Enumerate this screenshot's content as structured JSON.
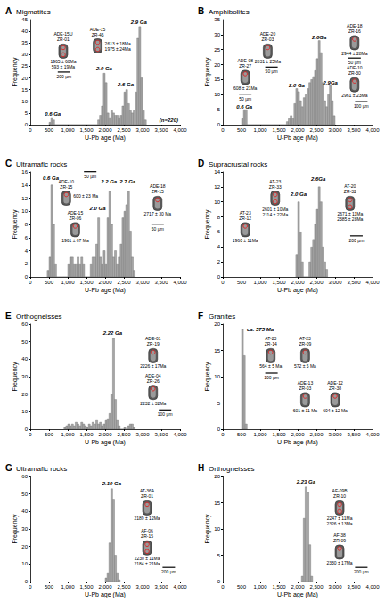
{
  "chart_data": [
    {
      "type": "histogram",
      "panel": "A",
      "title": "Migmatites",
      "xlabel": "U-Pb age (Ma)",
      "ylabel": "Frequency",
      "color": "#a6a6a6",
      "grid": false,
      "xlim": [
        0,
        4000
      ],
      "xticks": [
        0,
        500,
        1000,
        1500,
        2000,
        2500,
        3000,
        3500,
        4000
      ],
      "ylim": [
        0,
        45
      ],
      "yticks": [
        0,
        5,
        10,
        15,
        20,
        25,
        30,
        35,
        40,
        45
      ],
      "bins": [
        500,
        550,
        600,
        650,
        700,
        750,
        800,
        850,
        900,
        950,
        1000,
        1050,
        1100,
        1150,
        1200,
        1250,
        1300,
        1350,
        1400,
        1450,
        1500,
        1550,
        1600,
        1650,
        1700,
        1750,
        1800,
        1850,
        1900,
        1950,
        2000,
        2050,
        2100,
        2150,
        2200,
        2250,
        2300,
        2350,
        2400,
        2450,
        2500,
        2550,
        2600,
        2650,
        2700,
        2750,
        2800,
        2850,
        2900,
        2950,
        3000,
        3050,
        3100
      ],
      "counts": [
        1,
        3,
        2,
        0,
        0,
        0,
        0,
        0,
        0,
        0,
        0,
        0,
        0,
        0,
        0,
        0,
        0,
        0,
        0,
        0,
        0,
        0,
        0,
        0,
        0,
        0,
        2,
        4,
        8,
        22,
        18,
        5,
        3,
        6,
        5,
        4,
        4,
        3,
        4,
        8,
        14,
        15,
        9,
        6,
        5,
        6,
        14,
        37,
        42,
        20,
        6,
        2
      ],
      "annotations": [
        {
          "text": "0.6 Ga",
          "x": 600,
          "y": 4.5
        },
        {
          "text": "2.0 Ga",
          "x": 1975,
          "y": 24
        },
        {
          "text": "2.6 Ga",
          "x": 2550,
          "y": 17
        },
        {
          "text": "2.9 Ga",
          "x": 2900,
          "y": 44
        },
        {
          "text": "(n=220)",
          "x": 3700,
          "y": 2
        }
      ],
      "scale_bars": [
        {
          "text": "200 µm",
          "x": 900,
          "y": 21
        }
      ],
      "zircons": [
        {
          "sample": "ADE-15U",
          "grain": "ZR-01",
          "ages": [
            "1965 ± 60Ma",
            "593 ± 19Ma"
          ]
        },
        {
          "sample": "ADE-15",
          "grain": "ZR-46",
          "ages": [
            "2613 ± 18Ma",
            "1975 ± 24Ma"
          ]
        }
      ]
    },
    {
      "type": "histogram",
      "panel": "B",
      "title": "Amphibolites",
      "xlabel": "U-Pb age (Ma)",
      "ylabel": "Frequency",
      "color": "#a6a6a6",
      "grid": false,
      "xlim": [
        0,
        4000
      ],
      "xticks": [
        0,
        500,
        1000,
        1500,
        2000,
        2500,
        3000,
        3500,
        4000
      ],
      "ylim": [
        0,
        35
      ],
      "yticks": [
        0,
        5,
        10,
        15,
        20,
        25,
        30,
        35
      ],
      "bins": [
        500,
        550,
        600,
        650,
        700,
        750,
        800,
        850,
        900,
        950,
        1000,
        1050,
        1100,
        1150,
        1200,
        1250,
        1300,
        1350,
        1400,
        1450,
        1500,
        1550,
        1600,
        1650,
        1700,
        1750,
        1800,
        1850,
        1900,
        1950,
        2000,
        2050,
        2100,
        2150,
        2200,
        2250,
        2300,
        2350,
        2400,
        2450,
        2500,
        2550,
        2600,
        2650,
        2700,
        2750,
        2800,
        2850,
        2900,
        2950,
        3000
      ],
      "counts": [
        2,
        5,
        5,
        0,
        0,
        0,
        0,
        0,
        0,
        0,
        0,
        0,
        0,
        0,
        0,
        0,
        0,
        0,
        0,
        0,
        0,
        0,
        0,
        0,
        1,
        2,
        3,
        2,
        7,
        12,
        11,
        8,
        6,
        9,
        10,
        12,
        14,
        15,
        16,
        18,
        22,
        28,
        24,
        14,
        8,
        6,
        10,
        13,
        8,
        3
      ],
      "annotations": [
        {
          "text": "0.6 Ga",
          "x": 575,
          "y": 6
        },
        {
          "text": "2.0 Ga",
          "x": 1975,
          "y": 13
        },
        {
          "text": "2.6Ga",
          "x": 2575,
          "y": 29
        },
        {
          "text": "2.9Ga",
          "x": 2875,
          "y": 14
        }
      ],
      "scale_bars": [
        {
          "text": "50 µm",
          "x": 1300,
          "y": 18
        },
        {
          "text": "50 µm",
          "x": 600,
          "y": 9
        },
        {
          "text": "50 µm",
          "x": 3520,
          "y": 21
        },
        {
          "text": "100 µm",
          "x": 3700,
          "y": 6.5
        }
      ],
      "zircons": [
        {
          "sample": "ADE-20",
          "grain": "ZR-03",
          "ages": [
            "2031 ± 25Ma"
          ]
        },
        {
          "sample": "ADE-08",
          "grain": "ZR-27",
          "ages": [
            "608 ± 21Ma"
          ]
        },
        {
          "sample": "ADE-18",
          "grain": "ZR-16",
          "ages": [
            "2944 ± 28Ma"
          ]
        },
        {
          "sample": "ADE-10",
          "grain": "ZR-30",
          "ages": [
            "2961 ± 23Ma"
          ]
        }
      ]
    },
    {
      "type": "histogram",
      "panel": "C",
      "title": "Ultramafic rocks",
      "xlabel": "U-Pb age (Ma)",
      "ylabel": "Frequency",
      "color": "#a6a6a6",
      "grid": false,
      "xlim": [
        0,
        4000
      ],
      "xticks": [
        0,
        500,
        1000,
        1500,
        2000,
        2500,
        3000,
        3500,
        4000
      ],
      "ylim": [
        0,
        16
      ],
      "yticks": [
        0,
        2,
        4,
        6,
        8,
        10,
        12,
        14,
        16
      ],
      "bins": [
        450,
        500,
        550,
        600,
        650,
        700,
        750,
        800,
        850,
        900,
        950,
        1000,
        1050,
        1100,
        1150,
        1200,
        1250,
        1300,
        1350,
        1400,
        1450,
        1500,
        1550,
        1600,
        1650,
        1700,
        1750,
        1800,
        1850,
        1900,
        1950,
        2000,
        2050,
        2100,
        2150,
        2200,
        2250,
        2300,
        2350,
        2400,
        2450,
        2500,
        2550,
        2600,
        2650,
        2700,
        2750,
        2800
      ],
      "counts": [
        1,
        3,
        14,
        8,
        2,
        0,
        0,
        0,
        0,
        0,
        0,
        2,
        3,
        3,
        2,
        2,
        3,
        2,
        3,
        2,
        0,
        0,
        0,
        2,
        3,
        3,
        5,
        9,
        3,
        2,
        4,
        2,
        9,
        13,
        8,
        3,
        4,
        2,
        3,
        5,
        9,
        10,
        11,
        13,
        7,
        3,
        1
      ],
      "annotations": [
        {
          "text": "0.6 Ga",
          "x": 550,
          "y": 15
        },
        {
          "text": "2.0 Ga",
          "x": 1800,
          "y": 10.5
        },
        {
          "text": "2.2 Ga",
          "x": 2100,
          "y": 14.5
        },
        {
          "text": "2.7 Ga",
          "x": 2600,
          "y": 14.5
        }
      ],
      "scale_bars": [
        {
          "text": "50 µm",
          "x": 1600,
          "y": 15.5
        },
        {
          "text": "50 µm",
          "x": 3400,
          "y": 7.5
        }
      ],
      "zircons": [
        {
          "sample": "ADE-15",
          "grain": "ZR-06",
          "ages": [
            "1961 ± 67 Ma"
          ]
        },
        {
          "sample": "ADE-18",
          "grain": "ZR-15",
          "ages": [
            "2717 ± 30 Ma"
          ]
        },
        {
          "sample": "ADE-10",
          "grain": "ZR-15",
          "ages": [
            "600 ± 23 Ma"
          ]
        }
      ]
    },
    {
      "type": "histogram",
      "panel": "D",
      "title": "Supracrustal rocks",
      "xlabel": "U-Pb age (Ma)",
      "ylabel": "Frequency",
      "color": "#a6a6a6",
      "grid": false,
      "xlim": [
        0,
        4000
      ],
      "xticks": [
        0,
        500,
        1000,
        1500,
        2000,
        2500,
        3000,
        3500,
        4000
      ],
      "ylim": [
        0,
        14
      ],
      "yticks": [
        0,
        2,
        4,
        6,
        8,
        10,
        12,
        14
      ],
      "bins": [
        1950,
        2000,
        2050,
        2100,
        2150,
        2200,
        2250,
        2300,
        2350,
        2400,
        2450,
        2500,
        2550,
        2600,
        2650,
        2700,
        2750,
        2800
      ],
      "counts": [
        3,
        10,
        6,
        2,
        0,
        0,
        0,
        2,
        4,
        5,
        7,
        9,
        12,
        10,
        4,
        2,
        1
      ],
      "annotations": [
        {
          "text": "2.0 Ga",
          "x": 2025,
          "y": 11
        },
        {
          "text": "2.6Ga",
          "x": 2550,
          "y": 13
        }
      ],
      "scale_bars": [
        {
          "text": "200 µm",
          "x": 3570,
          "y": 5
        }
      ],
      "zircons": [
        {
          "sample": "AT-23",
          "grain": "ZR-33",
          "ages": [
            "2601 ± 10Ma",
            "2114 ± 22Ma"
          ]
        },
        {
          "sample": "AT-23",
          "grain": "ZR-12",
          "ages": [
            "1960 ± 11Ma"
          ]
        },
        {
          "sample": "AT-20",
          "grain": "ZR-32",
          "ages": [
            "2671 ± 11Ma",
            "2385 ± 28Ma"
          ]
        }
      ]
    },
    {
      "type": "histogram",
      "panel": "E",
      "title": "Orthogneisses",
      "xlabel": "U-Pb age (Ma)",
      "ylabel": "Frequency",
      "color": "#a6a6a6",
      "grid": false,
      "xlim": [
        0,
        4000
      ],
      "xticks": [
        0,
        500,
        1000,
        1500,
        2000,
        2500,
        3000,
        3500,
        4000
      ],
      "ylim": [
        0,
        60
      ],
      "yticks": [
        0,
        10,
        20,
        30,
        40,
        50,
        60
      ],
      "bins": [
        900,
        950,
        1000,
        1050,
        1100,
        1150,
        1200,
        1250,
        1300,
        1350,
        1400,
        1450,
        1500,
        1550,
        1600,
        1650,
        1700,
        1750,
        1800,
        1850,
        1900,
        1950,
        2000,
        2050,
        2100,
        2150,
        2200,
        2250,
        2300,
        2350,
        2400,
        2450,
        2500,
        2550,
        2600,
        2650,
        2700,
        2750,
        2800
      ],
      "counts": [
        1,
        2,
        3,
        2,
        3,
        2,
        4,
        3,
        2,
        4,
        3,
        2,
        1,
        3,
        2,
        4,
        3,
        5,
        3,
        4,
        2,
        3,
        5,
        6,
        9,
        20,
        52,
        17,
        5,
        2,
        0,
        0,
        1,
        0,
        2,
        3,
        3,
        1
      ],
      "annotations": [
        {
          "text": "2.22 Ga",
          "x": 2200,
          "y": 55
        }
      ],
      "scale_bars": [
        {
          "text": "100 µm",
          "x": 3600,
          "y": 9
        }
      ],
      "zircons": [
        {
          "sample": "ADE-01",
          "grain": "ZR-19",
          "ages": [
            "2226 ± 17Ma"
          ]
        },
        {
          "sample": "ADE-04",
          "grain": "ZR-26",
          "ages": [
            "2232 ± 32Ma"
          ]
        }
      ]
    },
    {
      "type": "histogram",
      "panel": "F",
      "title": "Granites",
      "xlabel": "U-Pb age (Ma)",
      "ylabel": "Frequency",
      "color": "#a6a6a6",
      "grid": false,
      "xlim": [
        0,
        4000
      ],
      "xticks": [
        0,
        500,
        1000,
        1500,
        2000,
        2500,
        3000,
        3500,
        4000
      ],
      "ylim": [
        0,
        20
      ],
      "yticks": [
        0,
        5,
        10,
        15,
        20
      ],
      "bins": [
        500,
        550,
        600,
        650
      ],
      "counts": [
        19,
        14,
        1
      ],
      "annotations": [
        {
          "text": "ca. 575 Ma",
          "x": 1000,
          "y": 19
        }
      ],
      "scale_bars": [
        {
          "text": "100 µm",
          "x": 1300,
          "y": 10
        }
      ],
      "zircons": [
        {
          "sample": "AT-23",
          "grain": "ZR-14",
          "ages": [
            "564 ± 5 Ma"
          ]
        },
        {
          "sample": "AT-23",
          "grain": "ZR-09",
          "ages": [
            "572 ± 5 Ma"
          ]
        },
        {
          "sample": "ADE-13",
          "grain": "ZR-03",
          "ages": [
            "601 ± 11 Ma"
          ]
        },
        {
          "sample": "ADE-12",
          "grain": "ZR-38",
          "ages": [
            "604 ± 12 Ma"
          ]
        }
      ]
    },
    {
      "type": "histogram",
      "panel": "G",
      "title": "Ultramafic rocks",
      "xlabel": "U-Pb age (Ma)",
      "ylabel": "Frequency",
      "color": "#a6a6a6",
      "grid": false,
      "xlim": [
        0,
        4000
      ],
      "xticks": [
        0,
        500,
        1000,
        1500,
        2000,
        2500,
        3000,
        3500,
        4000
      ],
      "ylim": [
        0,
        60
      ],
      "yticks": [
        0,
        10,
        20,
        30,
        40,
        50,
        60
      ],
      "bins": [
        2000,
        2050,
        2100,
        2150,
        2200,
        2250,
        2300,
        2350,
        2400
      ],
      "counts": [
        2,
        5,
        22,
        53,
        47,
        15,
        5,
        1
      ],
      "annotations": [
        {
          "text": "2.19 Ga",
          "x": 2175,
          "y": 56
        }
      ],
      "scale_bars": [
        {
          "text": "200 µm",
          "x": 3700,
          "y": 6
        }
      ],
      "zircons": [
        {
          "sample": "AT-36A",
          "grain": "ZR-01",
          "ages": [
            "2189 ± 12Ma"
          ]
        },
        {
          "sample": "AF-06",
          "grain": "ZR-15",
          "ages": [
            "2230 ± 11Ma",
            "2184 ± 21Ma"
          ]
        }
      ]
    },
    {
      "type": "histogram",
      "panel": "H",
      "title": "Orthogneisses",
      "xlabel": "U-Pb age (Ma)",
      "ylabel": "Frequency",
      "color": "#a6a6a6",
      "grid": false,
      "xlim": [
        0,
        4000
      ],
      "xticks": [
        0,
        500,
        1000,
        1500,
        2000,
        2500,
        3000,
        3500,
        4000
      ],
      "ylim": [
        0,
        20
      ],
      "yticks": [
        0,
        5,
        10,
        15,
        20
      ],
      "bins": [
        2100,
        2150,
        2200,
        2250,
        2300,
        2350,
        2400
      ],
      "counts": [
        1,
        12,
        18,
        17,
        7,
        1
      ],
      "annotations": [
        {
          "text": "2.23 Ga",
          "x": 2225,
          "y": 19
        }
      ],
      "scale_bars": [
        {
          "text": "200 µm",
          "x": 3700,
          "y": 2
        }
      ],
      "zircons": [
        {
          "sample": "AF-09B",
          "grain": "ZR-10",
          "ages": [
            "2247 ± 11Ma",
            "2326 ± 13Ma"
          ]
        },
        {
          "sample": "AF-38",
          "grain": "ZR-09",
          "ages": [
            "2330 ± 17Ma"
          ]
        }
      ]
    }
  ]
}
